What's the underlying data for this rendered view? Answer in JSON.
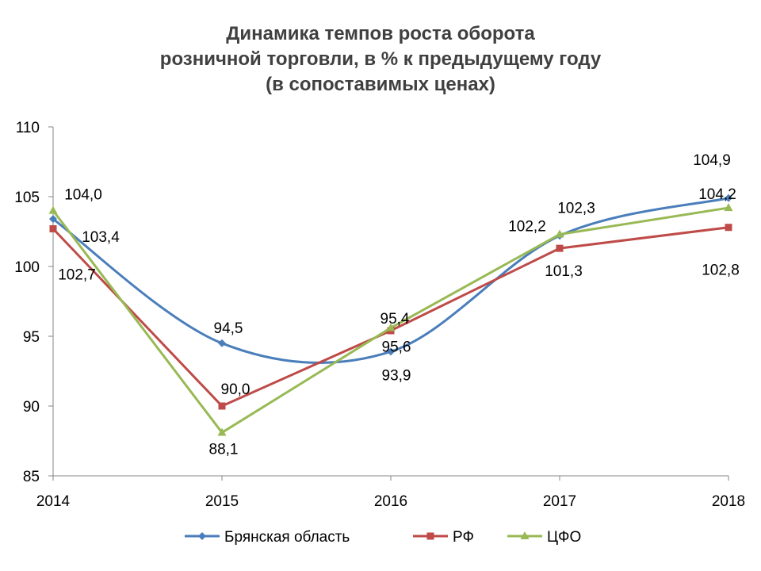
{
  "chart_data": {
    "type": "line",
    "title": [
      "Динамика темпов роста оборота",
      "розничной торговли, в % к предыдущему году",
      "(в сопоставимых ценах)"
    ],
    "xlabel": "",
    "ylabel": "",
    "x": [
      "2014",
      "2015",
      "2016",
      "2017",
      "2018"
    ],
    "ylim": [
      85,
      110
    ],
    "yticks": [
      "85",
      "90",
      "95",
      "100",
      "105",
      "110"
    ],
    "grid": false,
    "legend_position": "bottom",
    "series": [
      {
        "name": "Брянская область",
        "color": "#4a7ebb",
        "marker": "diamond",
        "smooth": true,
        "values": [
          103.4,
          94.5,
          93.9,
          102.2,
          104.9
        ],
        "labels": [
          "103,4",
          "94,5",
          "93,9",
          "102,2",
          "104,9"
        ]
      },
      {
        "name": "РФ",
        "color": "#be4b48",
        "marker": "square",
        "smooth": false,
        "values": [
          102.7,
          90.0,
          95.4,
          101.3,
          102.8
        ],
        "labels": [
          "102,7",
          "90,0",
          "95,4",
          "101,3",
          "102,8"
        ]
      },
      {
        "name": "ЦФО",
        "color": "#98b954",
        "marker": "triangle",
        "smooth": false,
        "values": [
          104.0,
          88.1,
          95.6,
          102.3,
          104.2
        ],
        "labels": [
          "104,0",
          "88,1",
          "95,6",
          "102,3",
          "104,2"
        ]
      }
    ]
  }
}
